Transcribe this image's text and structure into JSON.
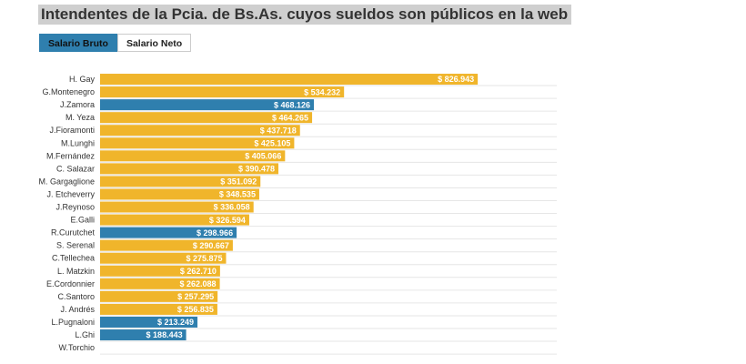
{
  "title": "Intendentes de la Pcia. de Bs.As. cuyos sueldos son públicos en la web",
  "tabs": [
    {
      "label": "Salario Bruto",
      "active": true
    },
    {
      "label": "Salario Neto",
      "active": false
    }
  ],
  "colors": {
    "default": "#f0b52b",
    "highlight": "#2f7fae",
    "grid": "#e6e6e6"
  },
  "chart_data": {
    "type": "bar",
    "orientation": "horizontal",
    "title": "Intendentes de la Pcia. de Bs.As. cuyos sueldos son públicos en la web",
    "xlabel": "",
    "ylabel": "",
    "xlim": [
      0,
      1000000
    ],
    "grid": true,
    "categories": [
      "H. Gay",
      "G.Montenegro",
      "J.Zamora",
      "M. Yeza",
      "J.Fioramonti",
      "M.Lunghi",
      "M.Fernández",
      "C. Salazar",
      "M. Gargaglione",
      "J. Etcheverry",
      "J.Reynoso",
      "E.Galli",
      "R.Curutchet",
      "S. Serenal",
      "C.Tellechea",
      "L. Matzkin",
      "E.Cordonnier",
      "C.Santoro",
      "J. Andrés",
      "L.Pugnaloni",
      "L.Ghi",
      "W.Torchio"
    ],
    "values": [
      826943,
      534232,
      468126,
      464265,
      437718,
      425105,
      405066,
      390478,
      351092,
      348535,
      336058,
      326594,
      298966,
      290667,
      275875,
      262710,
      262088,
      257295,
      256835,
      213249,
      188443,
      null
    ],
    "labels": [
      "$ 826.943",
      "$ 534.232",
      "$ 468.126",
      "$ 464.265",
      "$ 437.718",
      "$ 425.105",
      "$ 405.066",
      "$ 390.478",
      "$ 351.092",
      "$ 348.535",
      "$ 336.058",
      "$ 326.594",
      "$ 298.966",
      "$ 290.667",
      "$ 275.875",
      "$ 262.710",
      "$ 262.088",
      "$ 257.295",
      "$ 256.835",
      "$ 213.249",
      "$ 188.443",
      ""
    ],
    "highlighted": [
      "J.Zamora",
      "R.Curutchet",
      "L.Pugnaloni",
      "L.Ghi"
    ]
  }
}
